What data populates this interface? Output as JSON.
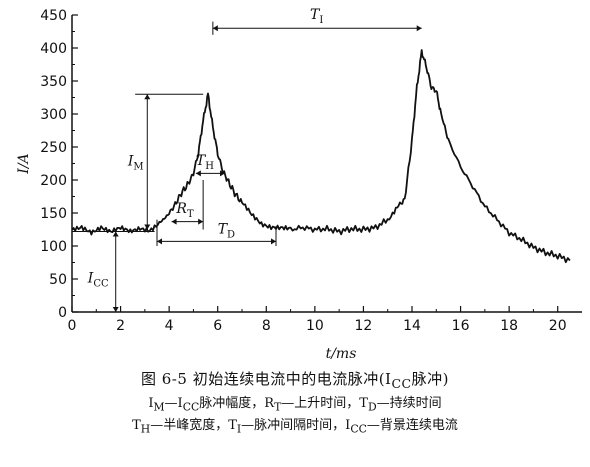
{
  "chart_data": {
    "type": "line",
    "xlabel": "t/ms",
    "ylabel": "I/A",
    "xlim": [
      0,
      21
    ],
    "ylim": [
      0,
      450
    ],
    "x_ticks": [
      0,
      2,
      4,
      6,
      8,
      10,
      12,
      14,
      16,
      18,
      20
    ],
    "y_ticks": [
      0,
      50,
      100,
      150,
      200,
      250,
      300,
      350,
      400,
      450
    ],
    "x_tick_labels": [
      "0",
      "2",
      "4",
      "6",
      "8",
      "10",
      "12",
      "14",
      "16",
      "18",
      "20"
    ],
    "y_tick_labels": [
      "0",
      "50",
      "100",
      "150",
      "200",
      "250",
      "300",
      "350",
      "400",
      "450"
    ],
    "grid": false,
    "series": [
      {
        "x": [
          0,
          0.4,
          0.8,
          1.2,
          1.6,
          2.0,
          2.4,
          2.8,
          3.2,
          3.6,
          3.9,
          4.2,
          4.5,
          4.8,
          5.0,
          5.2,
          5.4,
          5.6,
          5.8,
          6.0,
          6.2,
          6.4,
          6.7,
          7.0,
          7.4,
          7.8,
          8.2,
          8.6,
          9.0,
          9.5,
          10.0,
          10.5,
          11.0,
          11.5,
          12.0,
          12.5,
          13.0,
          13.4,
          13.7,
          14.0,
          14.2,
          14.4,
          14.6,
          14.8,
          15.0,
          15.2,
          15.5,
          16.0,
          16.5,
          17.0,
          17.5,
          18.0,
          18.5,
          19.0,
          19.5,
          20.0,
          20.5
        ],
        "y": [
          125,
          130,
          122,
          128,
          120,
          126,
          122,
          128,
          125,
          135,
          145,
          160,
          180,
          195,
          210,
          240,
          290,
          330,
          280,
          240,
          215,
          200,
          180,
          165,
          148,
          135,
          130,
          128,
          125,
          128,
          125,
          126,
          122,
          126,
          125,
          128,
          140,
          160,
          170,
          260,
          340,
          395,
          370,
          340,
          335,
          300,
          260,
          220,
          190,
          160,
          140,
          120,
          110,
          98,
          90,
          85,
          78
        ]
      }
    ],
    "annotations": {
      "T_I": "T",
      "T_I_sub": "I",
      "I_M": "I",
      "I_M_sub": "M",
      "T_H": "T",
      "T_H_sub": "H",
      "R_T": "R",
      "R_T_sub": "T",
      "T_D": "T",
      "T_D_sub": "D",
      "I_CC": "I",
      "I_CC_sub": "CC"
    }
  },
  "caption": {
    "title": "图 6-5    初始连续电流中的电流脉冲(I",
    "title_sub": "CC",
    "title_tail": "脉冲)",
    "line1": "I",
    "line1_sub_a": "M",
    "line1_mid1": "—I",
    "line1_sub_b": "CC",
    "line1_mid2": "脉冲幅度，R",
    "line1_sub_c": "T",
    "line1_mid3": "—上升时间，T",
    "line1_sub_d": "D",
    "line1_tail": "—持续时间",
    "line2": "T",
    "line2_sub_a": "H",
    "line2_mid1": "—半峰宽度，T",
    "line2_sub_b": "I",
    "line2_mid2": "—脉冲间隔时间，I",
    "line2_sub_c": "CC",
    "line2_tail": "—背景连续电流"
  }
}
